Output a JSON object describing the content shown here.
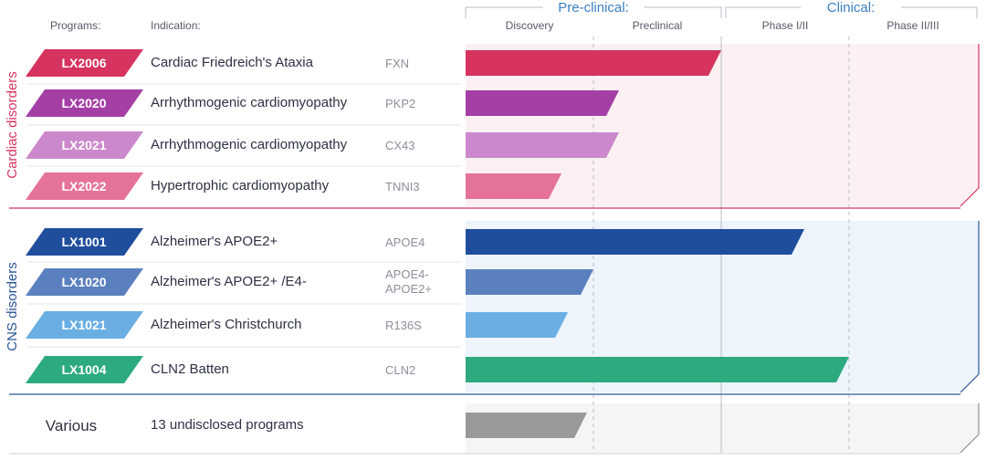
{
  "headers": {
    "programs": "Programs:",
    "indication": "Indication:"
  },
  "phase_groups": [
    {
      "label": "Pre-clinical:",
      "color": "#3b7fc4"
    },
    {
      "label": "Clinical:",
      "color": "#3b7fc4"
    }
  ],
  "groups": [
    {
      "name": "cardiac",
      "label": "Cardiac disorders",
      "color": "#d6335f",
      "bg": "#fdf0f3"
    },
    {
      "name": "cns",
      "label": "CNS disorders",
      "color": "#2a5699",
      "bg": "#edf4fb"
    },
    {
      "name": "various",
      "label": "Various",
      "color": "#8a8f99",
      "bg": "#f4f5f5"
    }
  ],
  "chart_data": {
    "type": "bar",
    "orientation": "horizontal",
    "stages": [
      "Discovery",
      "Preclinical",
      "Phase I/II",
      "Phase II/III"
    ],
    "programs": [
      {
        "code": "LX2006",
        "indication": "Cardiac Friedreich's Ataxia",
        "target": [
          "FXN"
        ],
        "group": "cardiac",
        "color": "#d6335f",
        "progress": 2.0
      },
      {
        "code": "LX2020",
        "indication": "Arrhythmogenic cardiomyopathy",
        "target": [
          "PKP2"
        ],
        "group": "cardiac",
        "color": "#a43fa6",
        "progress": 1.2
      },
      {
        "code": "LX2021",
        "indication": "Arrhythmogenic cardiomyopathy",
        "target": [
          "CX43"
        ],
        "group": "cardiac",
        "color": "#cc88cc",
        "progress": 1.2
      },
      {
        "code": "LX2022",
        "indication": "Hypertrophic cardiomyopathy",
        "target": [
          "TNNI3"
        ],
        "group": "cardiac",
        "color": "#e57399",
        "progress": 0.75
      },
      {
        "code": "LX1001",
        "indication": "Alzheimer's APOE2+",
        "target": [
          "APOE4"
        ],
        "group": "cns",
        "color": "#1f4e9c",
        "progress": 2.65
      },
      {
        "code": "LX1020",
        "indication": "Alzheimer's APOE2+ /E4-",
        "target": [
          "APOE4-",
          "APOE2+"
        ],
        "group": "cns",
        "color": "#5b80bf",
        "progress": 1.0
      },
      {
        "code": "LX1021",
        "indication": "Alzheimer's Christchurch",
        "target": [
          "R136S"
        ],
        "group": "cns",
        "color": "#6aaee3",
        "progress": 0.8
      },
      {
        "code": "LX1004",
        "indication": "CLN2 Batten",
        "target": [
          "CLN2"
        ],
        "group": "cns",
        "color": "#2daa80",
        "progress": 3.0
      },
      {
        "code": "Various",
        "indication": "13 undisclosed programs",
        "target": [],
        "group": "various",
        "color": "#999999",
        "progress": 0.95
      }
    ]
  }
}
